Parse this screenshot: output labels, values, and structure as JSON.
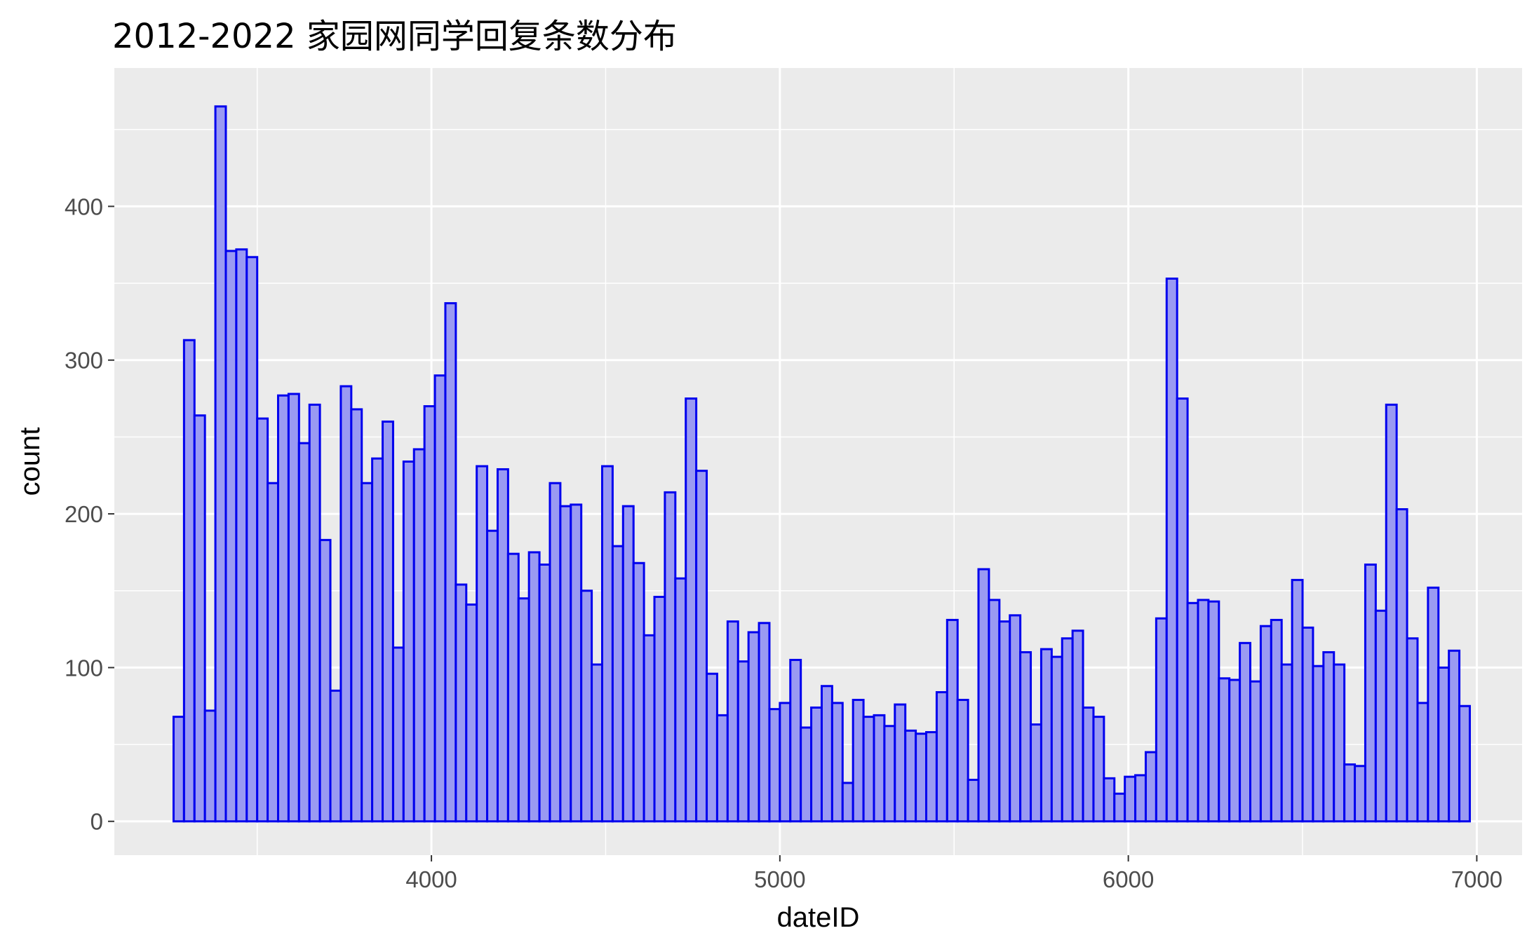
{
  "chart_data": {
    "type": "histogram",
    "title": "2012-2022 家园网同学回复条数分布",
    "xlabel": "dateID",
    "ylabel": "count",
    "xlim": [
      3090,
      7130
    ],
    "ylim": [
      -22,
      490
    ],
    "x_ticks": [
      4000,
      5000,
      6000,
      7000
    ],
    "y_ticks": [
      0,
      100,
      200,
      300,
      400
    ],
    "x_minor_ticks": [
      3500,
      4500,
      5500,
      6500
    ],
    "y_minor_ticks": [
      50,
      150,
      250,
      350,
      450
    ],
    "grid": true,
    "bin_start": 3260,
    "bin_width": 30,
    "fill_color": "#9a9af2",
    "edge_color": "#0000ee",
    "panel_color": "#ebebeb",
    "grid_color": "#ffffff",
    "counts": [
      68,
      313,
      264,
      72,
      465,
      371,
      372,
      367,
      262,
      220,
      277,
      278,
      246,
      271,
      183,
      85,
      283,
      268,
      220,
      236,
      260,
      113,
      234,
      242,
      270,
      290,
      337,
      154,
      141,
      231,
      189,
      229,
      174,
      145,
      175,
      167,
      220,
      205,
      206,
      150,
      102,
      231,
      179,
      205,
      168,
      121,
      146,
      214,
      158,
      275,
      228,
      96,
      69,
      130,
      104,
      123,
      129,
      73,
      77,
      105,
      61,
      74,
      88,
      77,
      25,
      79,
      68,
      69,
      62,
      76,
      59,
      57,
      58,
      84,
      131,
      79,
      27,
      164,
      144,
      130,
      134,
      110,
      63,
      112,
      107,
      119,
      124,
      74,
      68,
      28,
      18,
      29,
      30,
      45,
      132,
      353,
      275,
      142,
      144,
      143,
      93,
      92,
      116,
      91,
      127,
      131,
      102,
      157,
      126,
      101,
      110,
      102,
      37,
      36,
      167,
      137,
      271,
      203,
      119,
      77,
      152,
      100,
      111,
      75
    ]
  }
}
